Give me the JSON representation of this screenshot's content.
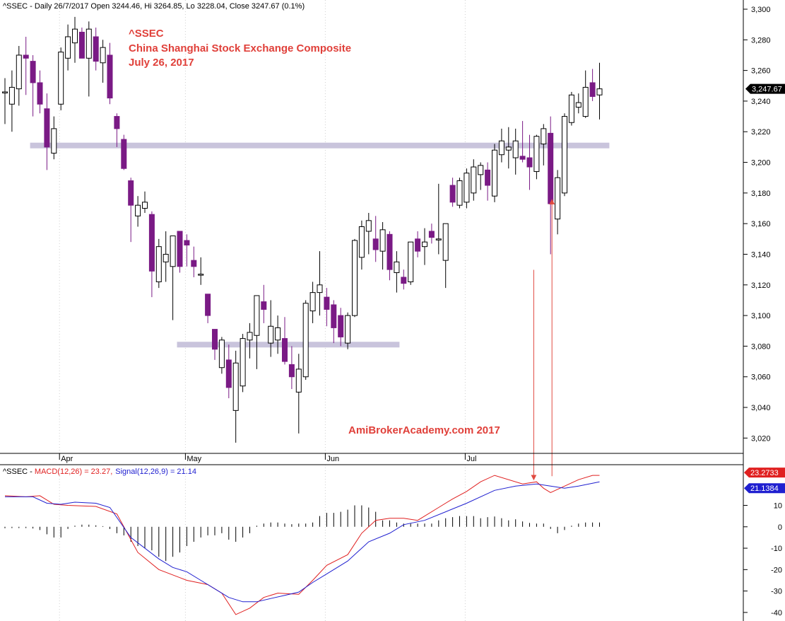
{
  "header": {
    "symbol": "^SSEC",
    "price_info": "^SSEC - Daily 26/7/2017 Open 3244.46, Hi 3264.85, Lo 3228.04, Close 3247.67 (0.1%)",
    "macd_prefix": "^SSEC - ",
    "macd_label": "MACD(12,26) = 23.27,",
    "signal_label": "Signal(12,26,9) = 21.14"
  },
  "annotations": {
    "title_line1": "^SSEC",
    "title_line2": "China Shanghai Stock Exchange Composite",
    "title_line3": "July 26, 2017",
    "watermark": "AmiBrokerAcademy.com  2017"
  },
  "colors": {
    "up_fill": "#ffffff",
    "down_fill": "#7a1a85",
    "candle_stroke": "#000000",
    "macd_line": "#e02020",
    "signal_line": "#2020d0",
    "annotation_text": "#e0403a",
    "zone_band": "#c9c4dc",
    "arrow": "#e04a40"
  },
  "chart_data": [
    {
      "type": "candlestick",
      "title": "",
      "y_ticks": [
        3020,
        3040,
        3060,
        3080,
        3100,
        3120,
        3140,
        3160,
        3180,
        3200,
        3220,
        3240,
        3260,
        3280,
        3300
      ],
      "ylim": [
        3010,
        3306
      ],
      "x_labels": [
        {
          "index": 8,
          "label": "Apr"
        },
        {
          "index": 26,
          "label": "May"
        },
        {
          "index": 46,
          "label": "Jun"
        },
        {
          "index": 66,
          "label": "Jul"
        }
      ],
      "last_price_label": "3,247.67",
      "zones": [
        {
          "price": 3211,
          "from_index": 4,
          "to_index": 86
        },
        {
          "price": 3081,
          "from_index": 25,
          "to_index": 56
        }
      ],
      "candles": [
        {
          "o": 3246,
          "h": 3255,
          "l": 3225,
          "c": 3246
        },
        {
          "o": 3238,
          "h": 3260,
          "l": 3220,
          "c": 3249
        },
        {
          "o": 3248,
          "h": 3276,
          "l": 3237,
          "c": 3270
        },
        {
          "o": 3270,
          "h": 3282,
          "l": 3244,
          "c": 3268
        },
        {
          "o": 3266,
          "h": 3270,
          "l": 3230,
          "c": 3252
        },
        {
          "o": 3252,
          "h": 3260,
          "l": 3232,
          "c": 3238
        },
        {
          "o": 3235,
          "h": 3245,
          "l": 3195,
          "c": 3210
        },
        {
          "o": 3206,
          "h": 3230,
          "l": 3202,
          "c": 3222
        },
        {
          "o": 3238,
          "h": 3275,
          "l": 3234,
          "c": 3272
        },
        {
          "o": 3268,
          "h": 3290,
          "l": 3260,
          "c": 3282
        },
        {
          "o": 3278,
          "h": 3295,
          "l": 3265,
          "c": 3287
        },
        {
          "o": 3285,
          "h": 3288,
          "l": 3268,
          "c": 3268
        },
        {
          "o": 3268,
          "h": 3292,
          "l": 3243,
          "c": 3287
        },
        {
          "o": 3282,
          "h": 3288,
          "l": 3260,
          "c": 3266
        },
        {
          "o": 3265,
          "h": 3280,
          "l": 3252,
          "c": 3275
        },
        {
          "o": 3270,
          "h": 3278,
          "l": 3238,
          "c": 3242
        },
        {
          "o": 3230,
          "h": 3232,
          "l": 3210,
          "c": 3222
        },
        {
          "o": 3215,
          "h": 3218,
          "l": 3195,
          "c": 3196
        },
        {
          "o": 3188,
          "h": 3190,
          "l": 3148,
          "c": 3172
        },
        {
          "o": 3165,
          "h": 3178,
          "l": 3158,
          "c": 3172
        },
        {
          "o": 3170,
          "h": 3181,
          "l": 3167,
          "c": 3174
        },
        {
          "o": 3166,
          "h": 3168,
          "l": 3112,
          "c": 3129
        },
        {
          "o": 3122,
          "h": 3150,
          "l": 3118,
          "c": 3145
        },
        {
          "o": 3135,
          "h": 3155,
          "l": 3122,
          "c": 3140
        },
        {
          "o": 3132,
          "h": 3152,
          "l": 3097,
          "c": 3152
        },
        {
          "o": 3155,
          "h": 3155,
          "l": 3128,
          "c": 3132
        },
        {
          "o": 3149,
          "h": 3153,
          "l": 3132,
          "c": 3146
        },
        {
          "o": 3136,
          "h": 3145,
          "l": 3125,
          "c": 3132
        },
        {
          "o": 3127,
          "h": 3138,
          "l": 3120,
          "c": 3127
        },
        {
          "o": 3114,
          "h": 3114,
          "l": 3095,
          "c": 3100
        },
        {
          "o": 3091,
          "h": 3091,
          "l": 3071,
          "c": 3078
        },
        {
          "o": 3066,
          "h": 3086,
          "l": 3062,
          "c": 3084
        },
        {
          "o": 3071,
          "h": 3081,
          "l": 3046,
          "c": 3053
        },
        {
          "o": 3038,
          "h": 3077,
          "l": 3017,
          "c": 3069
        },
        {
          "o": 3054,
          "h": 3088,
          "l": 3050,
          "c": 3085
        },
        {
          "o": 3084,
          "h": 3095,
          "l": 3072,
          "c": 3089
        },
        {
          "o": 3087,
          "h": 3113,
          "l": 3065,
          "c": 3113
        },
        {
          "o": 3109,
          "h": 3120,
          "l": 3095,
          "c": 3104
        },
        {
          "o": 3082,
          "h": 3110,
          "l": 3073,
          "c": 3093
        },
        {
          "o": 3084,
          "h": 3100,
          "l": 3075,
          "c": 3092
        },
        {
          "o": 3085,
          "h": 3099,
          "l": 3068,
          "c": 3070
        },
        {
          "o": 3068,
          "h": 3080,
          "l": 3052,
          "c": 3060
        },
        {
          "o": 3050,
          "h": 3075,
          "l": 3023,
          "c": 3065
        },
        {
          "o": 3060,
          "h": 3110,
          "l": 3058,
          "c": 3108
        },
        {
          "o": 3103,
          "h": 3122,
          "l": 3095,
          "c": 3115
        },
        {
          "o": 3115,
          "h": 3142,
          "l": 3100,
          "c": 3120
        },
        {
          "o": 3112,
          "h": 3118,
          "l": 3093,
          "c": 3104
        },
        {
          "o": 3107,
          "h": 3110,
          "l": 3082,
          "c": 3092
        },
        {
          "o": 3100,
          "h": 3105,
          "l": 3080,
          "c": 3086
        },
        {
          "o": 3082,
          "h": 3102,
          "l": 3078,
          "c": 3100
        },
        {
          "o": 3100,
          "h": 3150,
          "l": 3099,
          "c": 3149
        },
        {
          "o": 3138,
          "h": 3162,
          "l": 3130,
          "c": 3158
        },
        {
          "o": 3155,
          "h": 3167,
          "l": 3140,
          "c": 3162
        },
        {
          "o": 3150,
          "h": 3165,
          "l": 3135,
          "c": 3143
        },
        {
          "o": 3142,
          "h": 3161,
          "l": 3130,
          "c": 3156
        },
        {
          "o": 3153,
          "h": 3155,
          "l": 3123,
          "c": 3130
        },
        {
          "o": 3128,
          "h": 3142,
          "l": 3115,
          "c": 3135
        },
        {
          "o": 3125,
          "h": 3130,
          "l": 3117,
          "c": 3121
        },
        {
          "o": 3122,
          "h": 3148,
          "l": 3120,
          "c": 3148
        },
        {
          "o": 3150,
          "h": 3155,
          "l": 3138,
          "c": 3142
        },
        {
          "o": 3145,
          "h": 3157,
          "l": 3133,
          "c": 3148
        },
        {
          "o": 3155,
          "h": 3160,
          "l": 3147,
          "c": 3151
        },
        {
          "o": 3150,
          "h": 3186,
          "l": 3140,
          "c": 3150
        },
        {
          "o": 3136,
          "h": 3160,
          "l": 3118,
          "c": 3160
        },
        {
          "o": 3185,
          "h": 3190,
          "l": 3171,
          "c": 3174
        },
        {
          "o": 3172,
          "h": 3190,
          "l": 3170,
          "c": 3188
        },
        {
          "o": 3174,
          "h": 3196,
          "l": 3170,
          "c": 3193
        },
        {
          "o": 3180,
          "h": 3202,
          "l": 3175,
          "c": 3197
        },
        {
          "o": 3192,
          "h": 3200,
          "l": 3182,
          "c": 3198
        },
        {
          "o": 3195,
          "h": 3200,
          "l": 3175,
          "c": 3185
        },
        {
          "o": 3178,
          "h": 3212,
          "l": 3174,
          "c": 3208
        },
        {
          "o": 3205,
          "h": 3222,
          "l": 3200,
          "c": 3214
        },
        {
          "o": 3208,
          "h": 3223,
          "l": 3196,
          "c": 3210
        },
        {
          "o": 3203,
          "h": 3222,
          "l": 3192,
          "c": 3214
        },
        {
          "o": 3204,
          "h": 3227,
          "l": 3200,
          "c": 3202
        },
        {
          "o": 3203,
          "h": 3218,
          "l": 3182,
          "c": 3197
        },
        {
          "o": 3194,
          "h": 3218,
          "l": 3189,
          "c": 3217
        },
        {
          "o": 3212,
          "h": 3225,
          "l": 3198,
          "c": 3222
        },
        {
          "o": 3219,
          "h": 3230,
          "l": 3140,
          "c": 3173
        },
        {
          "o": 3163,
          "h": 3195,
          "l": 3153,
          "c": 3190
        },
        {
          "o": 3180,
          "h": 3232,
          "l": 3178,
          "c": 3230
        },
        {
          "o": 3226,
          "h": 3246,
          "l": 3224,
          "c": 3244
        },
        {
          "o": 3236,
          "h": 3245,
          "l": 3232,
          "c": 3239
        },
        {
          "o": 3230,
          "h": 3260,
          "l": 3229,
          "c": 3249
        },
        {
          "o": 3252,
          "h": 3261,
          "l": 3240,
          "c": 3243
        },
        {
          "o": 3244,
          "h": 3265,
          "l": 3228,
          "c": 3248
        }
      ]
    },
    {
      "type": "line",
      "title": "",
      "y_ticks": [
        -40,
        -30,
        -20,
        -10,
        0,
        10
      ],
      "ylim": [
        -44,
        29
      ],
      "last_macd_label": "23.2733",
      "last_signal_label": "21.1384",
      "series": [
        {
          "name": "MACD(12,26)",
          "points": [
            [
              0,
              14.5
            ],
            [
              3,
              14
            ],
            [
              5,
              14.5
            ],
            [
              7,
              10.5
            ],
            [
              9,
              10
            ],
            [
              13,
              9.5
            ],
            [
              16,
              6
            ],
            [
              19,
              -12
            ],
            [
              22,
              -20
            ],
            [
              26,
              -25
            ],
            [
              29,
              -27
            ],
            [
              31,
              -31
            ],
            [
              33,
              -41
            ],
            [
              35,
              -38
            ],
            [
              37,
              -33
            ],
            [
              39,
              -31
            ],
            [
              42,
              -31.5
            ],
            [
              44,
              -25
            ],
            [
              46,
              -18
            ],
            [
              49,
              -13
            ],
            [
              51,
              -3
            ],
            [
              53,
              3
            ],
            [
              55,
              4
            ],
            [
              57,
              4
            ],
            [
              59,
              3
            ],
            [
              62,
              9
            ],
            [
              64,
              13
            ],
            [
              66,
              16.5
            ],
            [
              68,
              21
            ],
            [
              70,
              24
            ],
            [
              74,
              20
            ],
            [
              76,
              21
            ],
            [
              77,
              18
            ],
            [
              78,
              16
            ],
            [
              80,
              19
            ],
            [
              82,
              22
            ],
            [
              84,
              24
            ],
            [
              85,
              24
            ]
          ]
        },
        {
          "name": "Signal(12,26,9)",
          "points": [
            [
              0,
              14
            ],
            [
              4,
              14
            ],
            [
              6,
              11
            ],
            [
              8,
              10.5
            ],
            [
              10,
              11.5
            ],
            [
              13,
              11
            ],
            [
              15,
              9
            ],
            [
              18,
              -5
            ],
            [
              22,
              -15
            ],
            [
              24,
              -19
            ],
            [
              26,
              -21
            ],
            [
              28,
              -25
            ],
            [
              30,
              -29
            ],
            [
              32,
              -33
            ],
            [
              34,
              -35
            ],
            [
              36,
              -35
            ],
            [
              38,
              -33.5
            ],
            [
              40,
              -32
            ],
            [
              42,
              -30.5
            ],
            [
              44,
              -26
            ],
            [
              46,
              -22
            ],
            [
              49,
              -16
            ],
            [
              52,
              -7
            ],
            [
              55,
              -3
            ],
            [
              57,
              1
            ],
            [
              60,
              3
            ],
            [
              63,
              7
            ],
            [
              66,
              11
            ],
            [
              70,
              17
            ],
            [
              73,
              19
            ],
            [
              76,
              20
            ],
            [
              78,
              19
            ],
            [
              80,
              18
            ],
            [
              82,
              19
            ],
            [
              85,
              21
            ]
          ]
        }
      ],
      "histogram": [
        -0.7,
        -0.6,
        -0.6,
        -0.6,
        -0.8,
        -1.5,
        -3.5,
        -5,
        -5,
        -1,
        0.5,
        1,
        1,
        0.7,
        0.3,
        -1,
        -3,
        -4,
        -7,
        -9,
        -10,
        -11,
        -14,
        -16,
        -14,
        -12,
        -9,
        -7,
        -5,
        -4,
        -4,
        -3,
        -6,
        -7,
        -5,
        -3,
        0.5,
        1.5,
        2,
        2,
        1.5,
        1.2,
        1.5,
        1.5,
        2,
        5,
        6.5,
        6.5,
        7,
        8,
        10,
        10,
        9,
        7,
        3,
        3,
        2,
        1.5,
        1.5,
        1.5,
        1.5,
        1.5,
        3,
        4,
        4.5,
        5,
        5,
        5,
        4,
        4.5,
        4.8,
        4,
        3,
        3.5,
        2.5,
        1.8,
        1.5,
        1.5,
        -1,
        -3,
        -1.5,
        0.5,
        1.5,
        2,
        2,
        2
      ]
    }
  ]
}
